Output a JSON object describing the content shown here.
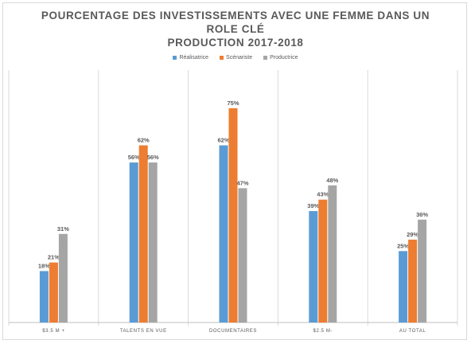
{
  "chart_data": {
    "type": "bar",
    "title_lines": [
      "POURCENTAGE DES INVESTISSEMENTS AVEC UNE FEMME DANS UN",
      "ROLE CLÉ",
      "PRODUCTION 2017-2018"
    ],
    "categories": [
      "$3.5 M +",
      "TALENTS EN VUE",
      "DOCUMENTAIRES",
      "$2.5 M-",
      "AU TOTAL"
    ],
    "series": [
      {
        "name": "Réalisatrice",
        "color": "#5b9bd5",
        "values": [
          18,
          56,
          62,
          39,
          25
        ]
      },
      {
        "name": "Scénariste",
        "color": "#ed7d31",
        "values": [
          21,
          62,
          75,
          43,
          29
        ]
      },
      {
        "name": "Productrice",
        "color": "#a5a5a5",
        "values": [
          31,
          56,
          47,
          48,
          36
        ]
      }
    ],
    "ylim": [
      0,
      85
    ],
    "value_suffix": "%",
    "grid": "vertical separators",
    "legend_position": "top"
  }
}
